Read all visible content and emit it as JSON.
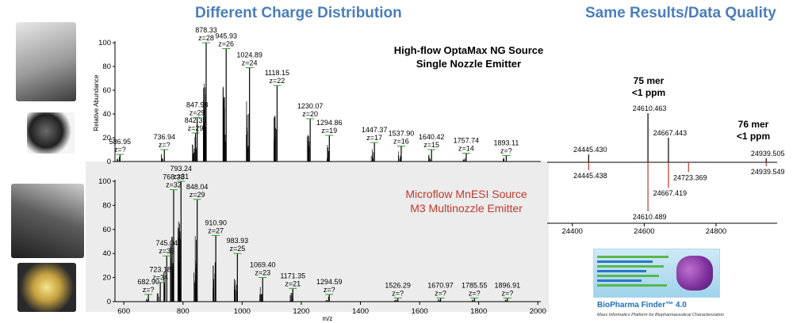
{
  "titles": {
    "left": "Different Charge Distribution",
    "right": "Same Results/Data Quality"
  },
  "colors": {
    "title": "#4a7ebb",
    "microflow_label": "#c0392b",
    "lower_panel_bg": "#ececec",
    "peak_line": "#000000",
    "peak_marker": "#2ca02c",
    "deconv_top": "#000000",
    "deconv_bottom": "#c0392b"
  },
  "images": {
    "top_source": "optamax-ng-source-photo",
    "top_emitter": "single-nozzle-emitter-photo",
    "bottom_source": "mnesi-source-photo",
    "bottom_emitter": "multinozzle-emitter-photo"
  },
  "logo": {
    "name": "BioPharma Finder™ 4.0",
    "tagline": "Mass Informatics Platform for Biopharmaceutical Characterization"
  },
  "chart_data": [
    {
      "type": "bar",
      "panel": "top",
      "title": "High-flow OptaMax NG Source\nSingle Nozzle Emitter",
      "ylabel": "Relative Abundance",
      "xlabel": "m/z",
      "xlim": [
        570,
        2010
      ],
      "ylim": [
        0,
        100
      ],
      "yticks": [
        0,
        20,
        40,
        60,
        80,
        100
      ],
      "peaks": [
        {
          "mz": 586.95,
          "intensity": 6,
          "label": "586.95",
          "charge": "z=?"
        },
        {
          "mz": 736.94,
          "intensity": 10,
          "label": "736.94",
          "charge": "z=?"
        },
        {
          "mz": 842.35,
          "intensity": 24,
          "label": "842.35",
          "charge": "z=29"
        },
        {
          "mz": 847.98,
          "intensity": 37,
          "label": "847.98",
          "charge": "z=29"
        },
        {
          "mz": 878.33,
          "intensity": 100,
          "label": "878.33",
          "charge": "z=28"
        },
        {
          "mz": 945.93,
          "intensity": 95,
          "label": "945.93",
          "charge": "z=26"
        },
        {
          "mz": 1024.89,
          "intensity": 79,
          "label": "1024.89",
          "charge": "z=24"
        },
        {
          "mz": 1118.15,
          "intensity": 64,
          "label": "1118.15",
          "charge": "z=22"
        },
        {
          "mz": 1230.07,
          "intensity": 36,
          "label": "1230.07",
          "charge": "z=20"
        },
        {
          "mz": 1294.86,
          "intensity": 22,
          "label": "1294.86",
          "charge": "z=19"
        },
        {
          "mz": 1447.37,
          "intensity": 16,
          "label": "1447.37",
          "charge": "z=17"
        },
        {
          "mz": 1537.9,
          "intensity": 13,
          "label": "1537.90",
          "charge": "z=16"
        },
        {
          "mz": 1640.42,
          "intensity": 10,
          "label": "1640.42",
          "charge": "z=15"
        },
        {
          "mz": 1757.74,
          "intensity": 7,
          "label": "1757.74",
          "charge": "z=14"
        },
        {
          "mz": 1893.11,
          "intensity": 5,
          "label": "1893.11",
          "charge": "z=?"
        }
      ]
    },
    {
      "type": "bar",
      "panel": "bottom",
      "title": "Microflow MnESI Source\nM3 Multinozzle Emitter",
      "ylabel": "",
      "xlabel": "m/z",
      "xlim": [
        570,
        2010
      ],
      "ylim": [
        0,
        100
      ],
      "yticks": [
        0,
        20,
        40,
        60,
        80,
        100
      ],
      "xticks": [
        600,
        800,
        1000,
        1200,
        1400,
        1600,
        1800,
        2000
      ],
      "peaks": [
        {
          "mz": 682.9,
          "intensity": 6,
          "label": "682.90",
          "charge": "z=?"
        },
        {
          "mz": 723.18,
          "intensity": 16,
          "label": "723.18",
          "charge": "z=34"
        },
        {
          "mz": 745.04,
          "intensity": 38,
          "label": "745.04",
          "charge": "z=33"
        },
        {
          "mz": 768.38,
          "intensity": 93,
          "label": "768.38",
          "charge": "z=32"
        },
        {
          "mz": 793.24,
          "intensity": 100,
          "label": "793.24",
          "charge": "z=31"
        },
        {
          "mz": 848.04,
          "intensity": 85,
          "label": "848.04",
          "charge": "z=29"
        },
        {
          "mz": 910.9,
          "intensity": 55,
          "label": "910.90",
          "charge": "z=27"
        },
        {
          "mz": 983.93,
          "intensity": 40,
          "label": "983.93",
          "charge": "z=25"
        },
        {
          "mz": 1069.4,
          "intensity": 20,
          "label": "1069.40",
          "charge": "z=23"
        },
        {
          "mz": 1171.35,
          "intensity": 11,
          "label": "1171.35",
          "charge": "z=21"
        },
        {
          "mz": 1294.59,
          "intensity": 6,
          "label": "1294.59",
          "charge": "z=?"
        },
        {
          "mz": 1526.29,
          "intensity": 3,
          "label": "1526.29",
          "charge": "z=?"
        },
        {
          "mz": 1670.97,
          "intensity": 3,
          "label": "1670.97",
          "charge": "z=?"
        },
        {
          "mz": 1785.55,
          "intensity": 3,
          "label": "1785.55",
          "charge": "z=?"
        },
        {
          "mz": 1896.91,
          "intensity": 3,
          "label": "1896.91",
          "charge": "z=?"
        }
      ]
    },
    {
      "type": "bar",
      "panel": "deconvoluted mirror",
      "xlim": [
        24330,
        24970
      ],
      "xticks": [
        24400,
        24600,
        24800
      ],
      "ylim": [
        -100,
        100
      ],
      "annotations": [
        {
          "text": "75 mer\n<1 ppm"
        },
        {
          "text": "76 mer\n<1 ppm"
        }
      ],
      "series": [
        {
          "name": "",
          "direction": "up",
          "points": [
            {
              "mass": 24445.43,
              "value": 16,
              "label": "24445.430"
            },
            {
              "mass": 24610.463,
              "value": 100,
              "label": "24610.463"
            },
            {
              "mass": 24667.443,
              "value": 50,
              "label": "24667.443"
            },
            {
              "mass": 24939.505,
              "value": 8,
              "label": "24939.505"
            }
          ]
        },
        {
          "name": "",
          "direction": "down",
          "points": [
            {
              "mass": 24445.438,
              "value": 16,
              "label": "24445.438"
            },
            {
              "mass": 24610.489,
              "value": 100,
              "label": "24610.489"
            },
            {
              "mass": 24667.419,
              "value": 52,
              "label": "24667.419"
            },
            {
              "mass": 24723.369,
              "value": 20,
              "label": "24723.369"
            },
            {
              "mass": 24939.549,
              "value": 8,
              "label": "24939.549"
            }
          ]
        }
      ]
    }
  ]
}
